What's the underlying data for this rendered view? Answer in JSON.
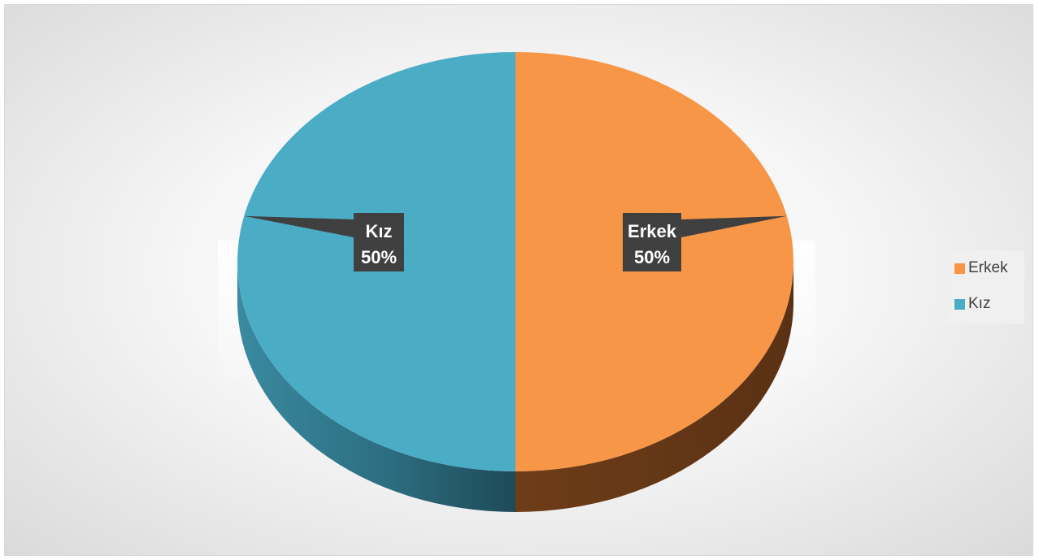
{
  "chart_data": {
    "type": "pie",
    "categories": [
      "Erkek",
      "Kız"
    ],
    "values": [
      50,
      50
    ],
    "data_labels": [
      {
        "category": "Erkek",
        "percent": "50%"
      },
      {
        "category": "Kız",
        "percent": "50%"
      }
    ],
    "colors": [
      "#f79646",
      "#4bacc6"
    ],
    "style": "3d",
    "legend": {
      "placement": "right",
      "entries": [
        {
          "label": "Erkek",
          "color": "#f79646"
        },
        {
          "label": "Kız",
          "color": "#4bacc6"
        }
      ]
    }
  }
}
